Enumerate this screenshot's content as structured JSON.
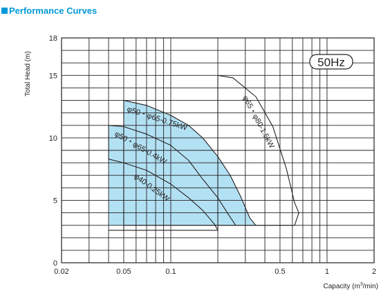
{
  "header": {
    "title": "Performance Curves",
    "accent_color": "#009ad8"
  },
  "chart_data": {
    "type": "area",
    "title": "Performance Curves",
    "xlabel": "Capacity (m³/min)",
    "xlabel_main": "Capacity (m",
    "xlabel_sup": "3",
    "xlabel_tail": "/min)",
    "ylabel": "Total Head (m)",
    "xscale": "log",
    "xlim": [
      0.02,
      2
    ],
    "ylim": [
      0,
      18
    ],
    "x_ticks": [
      {
        "value": 0.02,
        "label": "0.02"
      },
      {
        "value": 0.05,
        "label": "0.05"
      },
      {
        "value": 0.1,
        "label": "0.1"
      },
      {
        "value": 0.5,
        "label": "0.5"
      },
      {
        "value": 1,
        "label": "1"
      },
      {
        "value": 2,
        "label": "2"
      }
    ],
    "y_ticks": [
      {
        "value": 0,
        "label": "0"
      },
      {
        "value": 5,
        "label": "5"
      },
      {
        "value": 10,
        "label": "10"
      },
      {
        "value": 15,
        "label": "15"
      },
      {
        "value": 18,
        "label": "18"
      }
    ],
    "grid": true,
    "fill_color": "#b3e1f4",
    "badge": "50Hz",
    "series": [
      {
        "name": "φ50・φ65-0.75kW",
        "filled": true,
        "x": [
          0.05,
          0.07,
          0.1,
          0.13,
          0.16,
          0.2,
          0.24,
          0.28,
          0.32,
          0.35
        ],
        "y": [
          13,
          12.6,
          11.8,
          11.0,
          10.0,
          8.5,
          7.0,
          5.3,
          3.6,
          3.0
        ]
      },
      {
        "name": "φ50・φ65-0.4kW",
        "filled": true,
        "x": [
          0.04,
          0.05,
          0.07,
          0.1,
          0.13,
          0.16,
          0.2,
          0.23,
          0.26
        ],
        "y": [
          11,
          10.9,
          10.3,
          9.4,
          8.2,
          6.7,
          5.2,
          4.0,
          3.0
        ]
      },
      {
        "name": "φ40-0.25kW",
        "filled": false,
        "x": [
          0.04,
          0.05,
          0.07,
          0.1,
          0.13,
          0.16,
          0.19,
          0.2
        ],
        "y": [
          8.3,
          8.0,
          7.4,
          6.3,
          5.2,
          4.2,
          3.1,
          2.6
        ]
      },
      {
        "name": "φ65・φ80-1.5kW",
        "filled": false,
        "x": [
          0.2,
          0.25,
          0.35,
          0.45,
          0.55,
          0.62,
          0.66
        ],
        "y": [
          15,
          14.8,
          13.3,
          10.9,
          7.5,
          4.8,
          4.0
        ]
      }
    ]
  }
}
